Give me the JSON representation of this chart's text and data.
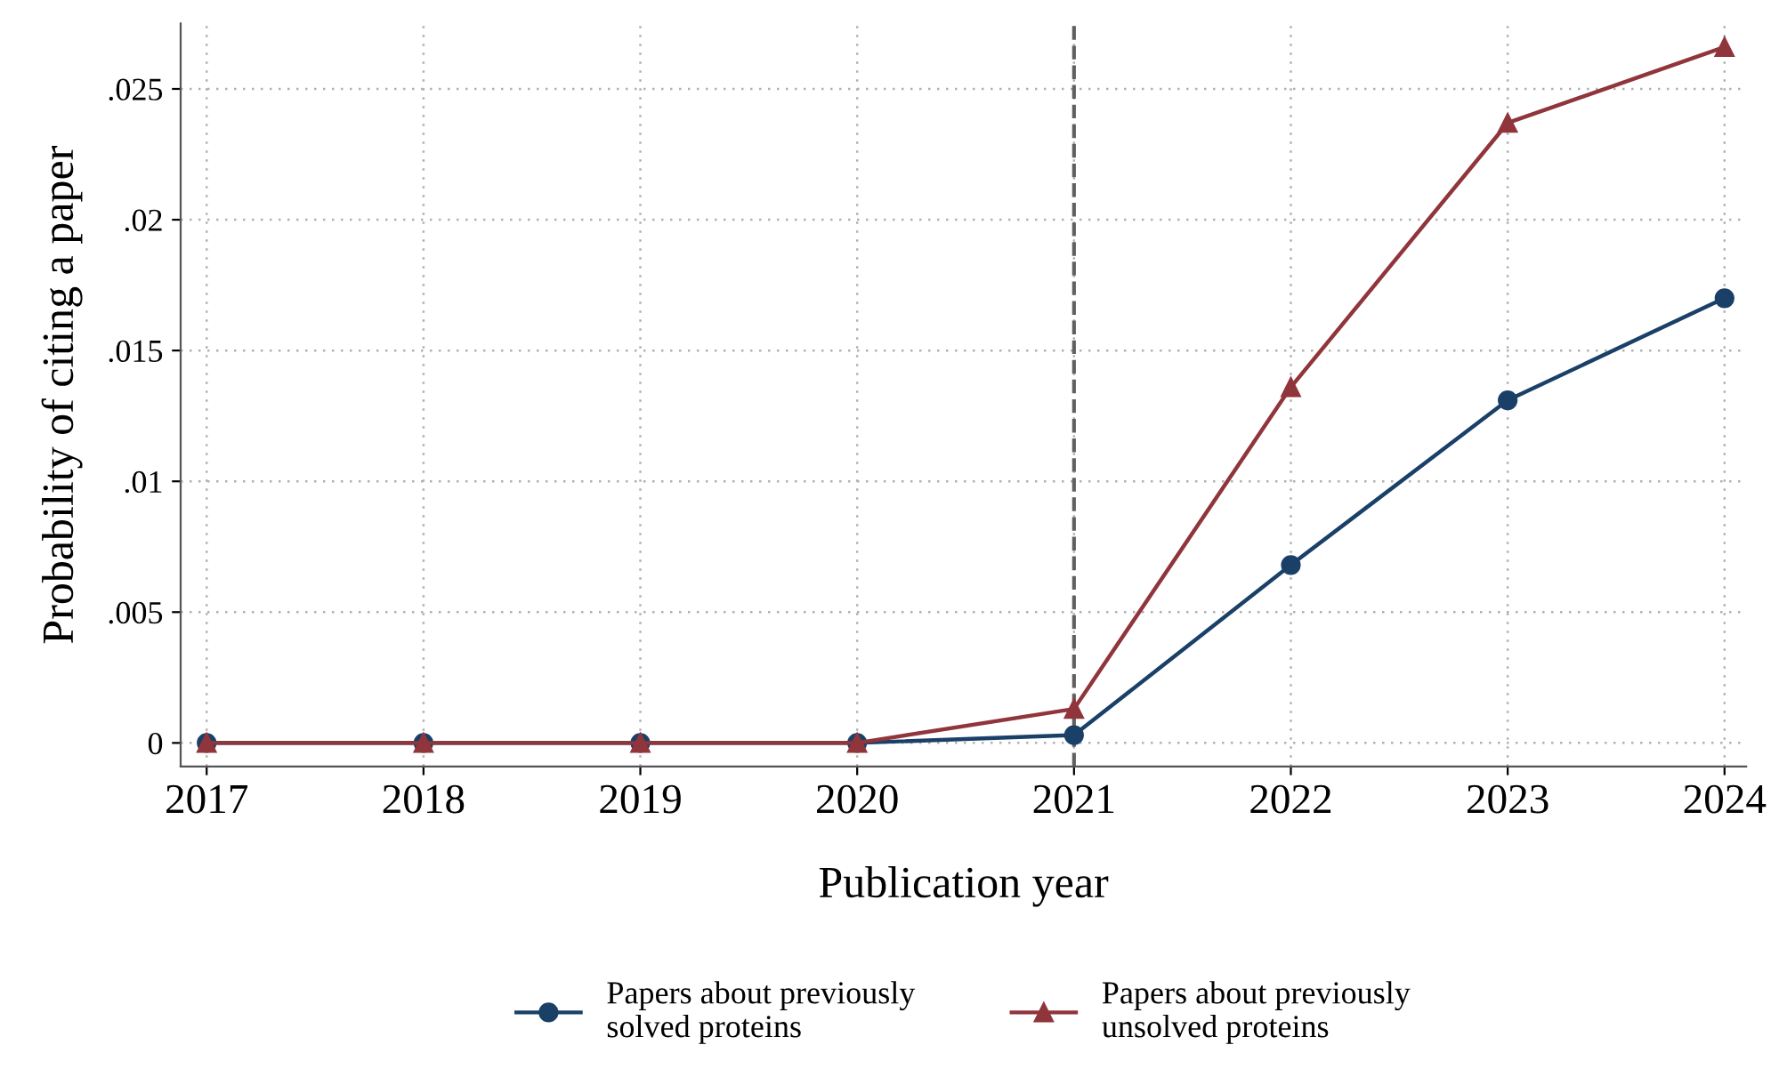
{
  "chart_data": {
    "type": "line",
    "xlabel": "Publication year",
    "ylabel": "Probability of citing a paper",
    "x": [
      2017,
      2018,
      2019,
      2020,
      2021,
      2022,
      2023,
      2024
    ],
    "series": [
      {
        "name": "Papers about previously\nsolved proteins",
        "color": "#1a4068",
        "marker": "circle",
        "values": [
          0,
          0,
          0,
          0,
          0.0003,
          0.0068,
          0.0131,
          0.017
        ]
      },
      {
        "name": "Papers about previously\nunsolved proteins",
        "color": "#90353b",
        "marker": "triangle",
        "values": [
          0,
          0,
          0,
          0,
          0.0013,
          0.0136,
          0.0237,
          0.0266
        ]
      }
    ],
    "xlim": [
      2016.88,
      2024.1
    ],
    "ylim": [
      -0.0009,
      0.0275
    ],
    "xticks": [
      2017,
      2018,
      2019,
      2020,
      2021,
      2022,
      2023,
      2024
    ],
    "yticks": [
      0,
      {
        "value": 0.005,
        "label": ".005"
      },
      {
        "value": 0.01,
        "label": ".01"
      },
      {
        "value": 0.015,
        "label": ".015"
      },
      {
        "value": 0.02,
        "label": ".02"
      },
      {
        "value": 0.025,
        "label": ".025"
      }
    ],
    "ref_lines": [
      {
        "axis": "x",
        "value": 2021,
        "color": "#606060",
        "line_style": "dashed"
      }
    ],
    "grid": true,
    "legend": "bottom",
    "line_style": "solid"
  }
}
